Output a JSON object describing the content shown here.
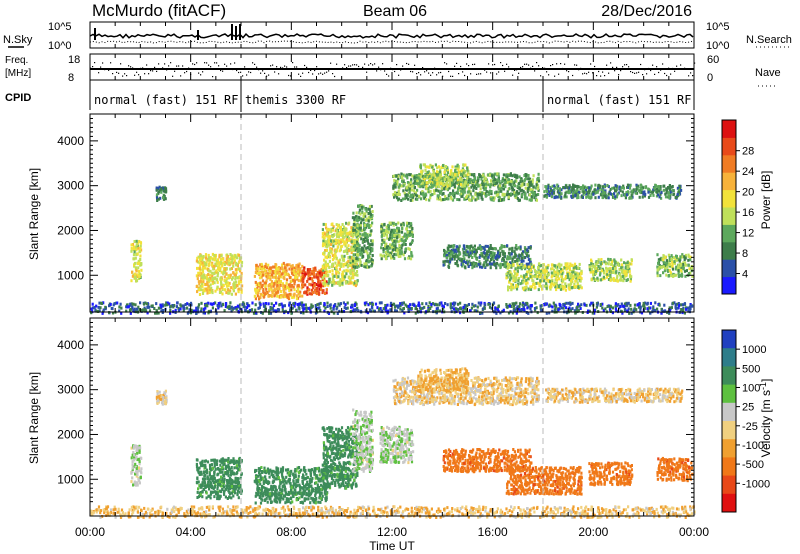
{
  "header": {
    "station": "McMurdo (fitACF)",
    "beam": "Beam 06",
    "date": "28/Dec/2016"
  },
  "side_labels": {
    "nsky": "N.Sky",
    "freq": "Freq.",
    "freq_unit": "[MHz]",
    "cpid": "CPID",
    "nsearch": "N.Search",
    "nave": "Nave"
  },
  "noise_panel": {
    "left_ticks": [
      "10^5",
      "10^0"
    ],
    "right_ticks": [
      "10^5",
      "10^0"
    ]
  },
  "freq_panel": {
    "left_ticks": [
      "18",
      "8"
    ],
    "right_ticks": [
      "60",
      "0"
    ]
  },
  "cpid_segments": [
    {
      "label": "normal (fast) 151 RF",
      "start_hour": 0,
      "end_hour": 6
    },
    {
      "label": "themis 3300 RF",
      "start_hour": 6,
      "end_hour": 18
    },
    {
      "label": "normal (fast) 151 RF",
      "start_hour": 18,
      "end_hour": 24
    }
  ],
  "x_axis": {
    "label": "Time UT",
    "ticks": [
      "00:00",
      "04:00",
      "08:00",
      "12:00",
      "16:00",
      "20:00",
      "00:00"
    ],
    "range_hours": [
      0,
      24
    ]
  },
  "chart_data": [
    {
      "type": "heatmap",
      "panel": "power",
      "ylabel": "Slant Range [km]",
      "ylim": [
        180,
        4600
      ],
      "yticks": [
        1000,
        2000,
        3000,
        4000
      ],
      "colorbar": {
        "label": "Power [dB]",
        "ticks": [
          "4",
          "8",
          "12",
          "16",
          "20",
          "24",
          "28"
        ],
        "colors": [
          "#1a1aff",
          "#2b50a8",
          "#3d7d4a",
          "#5ca85c",
          "#bfe05a",
          "#f2e23a",
          "#f7b23a",
          "#f07c24",
          "#e84a1a",
          "#dd1111"
        ]
      },
      "echo_regions": [
        {
          "t0": 0.0,
          "t1": 24.0,
          "r0": 180,
          "r1": 420,
          "v": 7
        },
        {
          "t0": 1.6,
          "t1": 2.0,
          "r0": 900,
          "r1": 1800,
          "v": 17
        },
        {
          "t0": 2.6,
          "t1": 3.0,
          "r0": 2700,
          "r1": 3000,
          "v": 10
        },
        {
          "t0": 4.2,
          "t1": 6.0,
          "r0": 600,
          "r1": 1500,
          "v": 18
        },
        {
          "t0": 6.5,
          "t1": 8.4,
          "r0": 500,
          "r1": 1300,
          "v": 22
        },
        {
          "t0": 8.4,
          "t1": 9.4,
          "r0": 600,
          "r1": 1200,
          "v": 27
        },
        {
          "t0": 9.2,
          "t1": 10.6,
          "r0": 800,
          "r1": 2200,
          "v": 17
        },
        {
          "t0": 10.4,
          "t1": 11.2,
          "r0": 1200,
          "r1": 2600,
          "v": 12
        },
        {
          "t0": 11.5,
          "t1": 12.8,
          "r0": 1400,
          "r1": 2200,
          "v": 13
        },
        {
          "t0": 12.0,
          "t1": 17.8,
          "r0": 2700,
          "r1": 3300,
          "v": 12
        },
        {
          "t0": 13.0,
          "t1": 15.0,
          "r0": 3000,
          "r1": 3500,
          "v": 15
        },
        {
          "t0": 14.0,
          "t1": 17.5,
          "r0": 1200,
          "r1": 1700,
          "v": 10
        },
        {
          "t0": 16.5,
          "t1": 19.5,
          "r0": 700,
          "r1": 1300,
          "v": 16
        },
        {
          "t0": 18.0,
          "t1": 23.5,
          "r0": 2750,
          "r1": 3050,
          "v": 10
        },
        {
          "t0": 19.8,
          "t1": 21.5,
          "r0": 900,
          "r1": 1400,
          "v": 15
        },
        {
          "t0": 22.5,
          "t1": 23.9,
          "r0": 1000,
          "r1": 1500,
          "v": 14
        }
      ]
    },
    {
      "type": "heatmap",
      "panel": "velocity",
      "ylabel": "Slant Range [km]",
      "ylim": [
        180,
        4600
      ],
      "yticks": [
        1000,
        2000,
        3000,
        4000
      ],
      "colorbar": {
        "label": "Velocity [m s^-1]",
        "ticks": [
          "1000",
          "500",
          "100",
          "25",
          "-25",
          "-100",
          "-500",
          "-1000"
        ],
        "colors": [
          "#2040c0",
          "#2e7d8a",
          "#3d8c5a",
          "#5ec040",
          "#c8c8c8",
          "#f0d080",
          "#f0a030",
          "#f07818",
          "#e84818",
          "#e01010"
        ]
      },
      "echo_regions": [
        {
          "t0": 0.0,
          "t1": 24.0,
          "r0": 180,
          "r1": 420,
          "v": -20
        },
        {
          "t0": 1.6,
          "t1": 2.0,
          "r0": 900,
          "r1": 1800,
          "v": 80
        },
        {
          "t0": 2.6,
          "t1": 3.0,
          "r0": 2700,
          "r1": 3000,
          "v": 0
        },
        {
          "t0": 4.2,
          "t1": 6.0,
          "r0": 600,
          "r1": 1500,
          "v": 300
        },
        {
          "t0": 6.5,
          "t1": 9.4,
          "r0": 500,
          "r1": 1300,
          "v": 300
        },
        {
          "t0": 9.2,
          "t1": 10.6,
          "r0": 800,
          "r1": 2200,
          "v": 300
        },
        {
          "t0": 10.4,
          "t1": 11.2,
          "r0": 1200,
          "r1": 2600,
          "v": 80
        },
        {
          "t0": 11.5,
          "t1": 12.8,
          "r0": 1400,
          "r1": 2200,
          "v": 80
        },
        {
          "t0": 12.0,
          "t1": 17.8,
          "r0": 2700,
          "r1": 3300,
          "v": 0
        },
        {
          "t0": 13.0,
          "t1": 15.0,
          "r0": 3000,
          "r1": 3500,
          "v": -40
        },
        {
          "t0": 14.0,
          "t1": 17.5,
          "r0": 1200,
          "r1": 1700,
          "v": -200
        },
        {
          "t0": 16.5,
          "t1": 19.5,
          "r0": 700,
          "r1": 1300,
          "v": -200
        },
        {
          "t0": 18.0,
          "t1": 23.5,
          "r0": 2750,
          "r1": 3050,
          "v": 0
        },
        {
          "t0": 19.8,
          "t1": 21.5,
          "r0": 900,
          "r1": 1400,
          "v": -200
        },
        {
          "t0": 22.5,
          "t1": 23.9,
          "r0": 1000,
          "r1": 1500,
          "v": -200
        }
      ]
    }
  ]
}
